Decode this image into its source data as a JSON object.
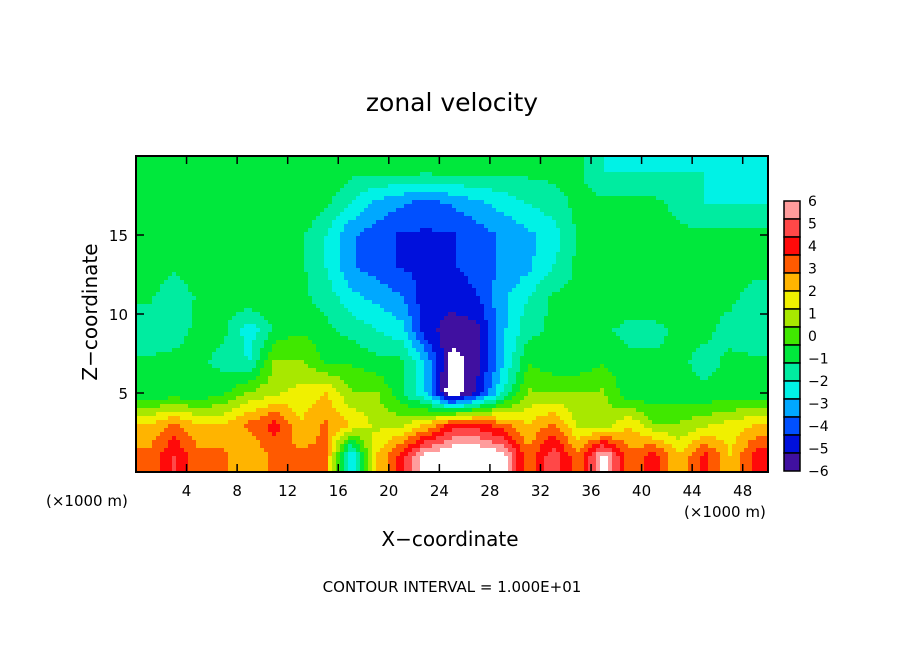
{
  "chart_data": {
    "type": "heatmap",
    "title": "zonal velocity",
    "xlabel": "X−coordinate",
    "ylabel": "Z−coordinate",
    "x_unit_left": "(×1000 m)",
    "x_unit_right": "(×1000 m)",
    "footer": "CONTOUR INTERVAL = 1.000E+01",
    "xlim": [
      0,
      50
    ],
    "ylim": [
      0,
      20
    ],
    "xticks": [
      4,
      8,
      12,
      16,
      20,
      24,
      28,
      32,
      36,
      40,
      44,
      48
    ],
    "yticks": [
      5,
      10,
      15
    ],
    "colorbar": {
      "ticks": [
        6,
        5,
        4,
        3,
        2,
        1,
        0,
        -1,
        -2,
        -3,
        -4,
        -5,
        -6
      ],
      "tick_labels": [
        "6",
        "5",
        "4",
        "3",
        "2",
        "1",
        "0",
        "−1",
        "−2",
        "−3",
        "−4",
        "−5",
        "−6"
      ],
      "range": [
        -6,
        6
      ],
      "colors_high_to_low": [
        "#ff9c9c",
        "#ff4848",
        "#ff0a0a",
        "#ff5a00",
        "#ffb400",
        "#f0f000",
        "#a8e800",
        "#40e800",
        "#00e83c",
        "#00eca0",
        "#00f2e6",
        "#00a8ff",
        "#0050ff",
        "#0010dc",
        "#4010a0"
      ]
    },
    "grid_x": [
      1,
      3,
      5,
      7,
      9,
      11,
      13,
      15,
      17,
      19,
      21,
      23,
      25,
      27,
      29,
      31,
      33,
      35,
      37,
      39,
      41,
      43,
      45,
      47,
      49
    ],
    "grid_z": [
      19,
      17,
      15,
      13,
      11,
      9,
      7,
      5,
      3,
      1
    ],
    "values": [
      [
        -0.5,
        -0.5,
        -0.5,
        -0.5,
        -0.5,
        -0.5,
        -0.5,
        -0.5,
        -1,
        -1,
        -1,
        -1,
        -1,
        -1,
        -1,
        -1,
        -1,
        -1,
        -2,
        -2,
        -2,
        -2,
        -2,
        -2,
        -2
      ],
      [
        -0.5,
        -0.5,
        -0.5,
        -0.5,
        -0.5,
        -0.5,
        -0.5,
        -1,
        -2,
        -3,
        -3.5,
        -4,
        -3.5,
        -3,
        -2.5,
        -2,
        -1.5,
        -1,
        -1,
        -1,
        -1,
        -1.5,
        -2,
        -2,
        -2
      ],
      [
        -0.5,
        -0.5,
        -0.5,
        -0.5,
        -0.5,
        -0.5,
        -1,
        -2,
        -3.5,
        -4,
        -4.5,
        -4.5,
        -4.5,
        -4,
        -3.5,
        -3,
        -2.5,
        -1,
        -0.5,
        -0.5,
        -0.5,
        -1,
        -1,
        -1,
        -1
      ],
      [
        -0.5,
        -1,
        -0.5,
        -0.5,
        -0.5,
        -0.5,
        -1,
        -2,
        -3.5,
        -4,
        -4.5,
        -4.5,
        -4.5,
        -4,
        -3.5,
        -3,
        -2,
        -1,
        -0.5,
        -0.5,
        -0.5,
        -0.5,
        -1,
        -1,
        -1
      ],
      [
        -1,
        -2,
        -1,
        -1,
        -0.5,
        -0.5,
        -1,
        -1.5,
        -2.5,
        -3,
        -3.5,
        -5,
        -5,
        -4.5,
        -3,
        -2,
        -1,
        -1,
        -0.5,
        -0.5,
        -0.5,
        -0.5,
        -1,
        -1,
        -1.5
      ],
      [
        -2,
        -1.5,
        -1,
        -1,
        -2.5,
        -1,
        -0.5,
        -1,
        -1.5,
        -2,
        -2.5,
        -5,
        -5.5,
        -5.5,
        -3,
        -1.5,
        -1,
        -1,
        -1,
        -1.5,
        -1.5,
        -1,
        -1,
        -1.5,
        -2
      ],
      [
        -1,
        -1,
        -1,
        -1.5,
        -2,
        0.5,
        0.5,
        -0.5,
        -0.5,
        -1,
        -1,
        -3,
        -6.5,
        -5.5,
        -3,
        -0.5,
        -1,
        -1,
        -0.5,
        -1,
        -1,
        -1,
        -1.5,
        -1,
        -1
      ],
      [
        -1,
        -1,
        -1,
        -0.5,
        0.5,
        1,
        1.5,
        2,
        0.5,
        0.5,
        -1,
        -3,
        -7,
        -5,
        -2,
        0.5,
        0.5,
        0.5,
        0.5,
        -1,
        -1,
        -1,
        -1,
        -1,
        -1
      ],
      [
        2,
        3,
        2,
        2,
        3,
        4,
        2,
        3,
        2,
        1,
        1,
        2,
        4,
        4,
        3,
        2,
        3,
        1,
        0.5,
        2,
        0.5,
        0.5,
        1,
        1.5,
        2
      ],
      [
        3,
        4.5,
        3,
        3,
        2,
        3,
        3,
        3,
        -3,
        2,
        4,
        6.5,
        7,
        7,
        6.5,
        3,
        5,
        3,
        6.5,
        3,
        4,
        2,
        4,
        2,
        4
      ]
    ]
  }
}
